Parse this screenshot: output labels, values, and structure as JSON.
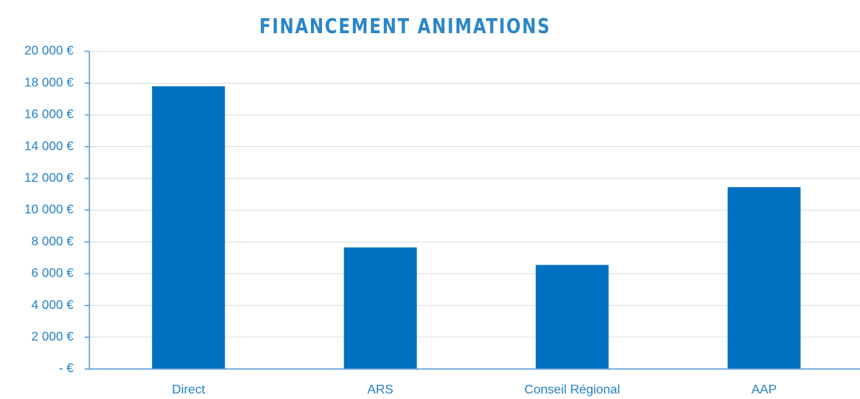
{
  "chart_data": {
    "type": "bar",
    "title": "FINANCEMENT ANIMATIONS",
    "categories": [
      "Direct",
      "ARS",
      "Conseil Régional",
      "AAP"
    ],
    "values": [
      17800,
      7650,
      6550,
      11450
    ],
    "color": "#0070c0",
    "ylim": [
      0,
      20000
    ],
    "yticks": [
      {
        "value": 0,
        "label": "- €"
      },
      {
        "value": 2000,
        "label": "2 000 €"
      },
      {
        "value": 4000,
        "label": "4 000 €"
      },
      {
        "value": 6000,
        "label": "6 000 €"
      },
      {
        "value": 8000,
        "label": "8 000 €"
      },
      {
        "value": 10000,
        "label": "10 000 €"
      },
      {
        "value": 12000,
        "label": "12 000 €"
      },
      {
        "value": 14000,
        "label": "14 000 €"
      },
      {
        "value": 16000,
        "label": "16 000 €"
      },
      {
        "value": 18000,
        "label": "18 000 €"
      },
      {
        "value": 20000,
        "label": "20 000 €"
      }
    ],
    "grid": true
  }
}
